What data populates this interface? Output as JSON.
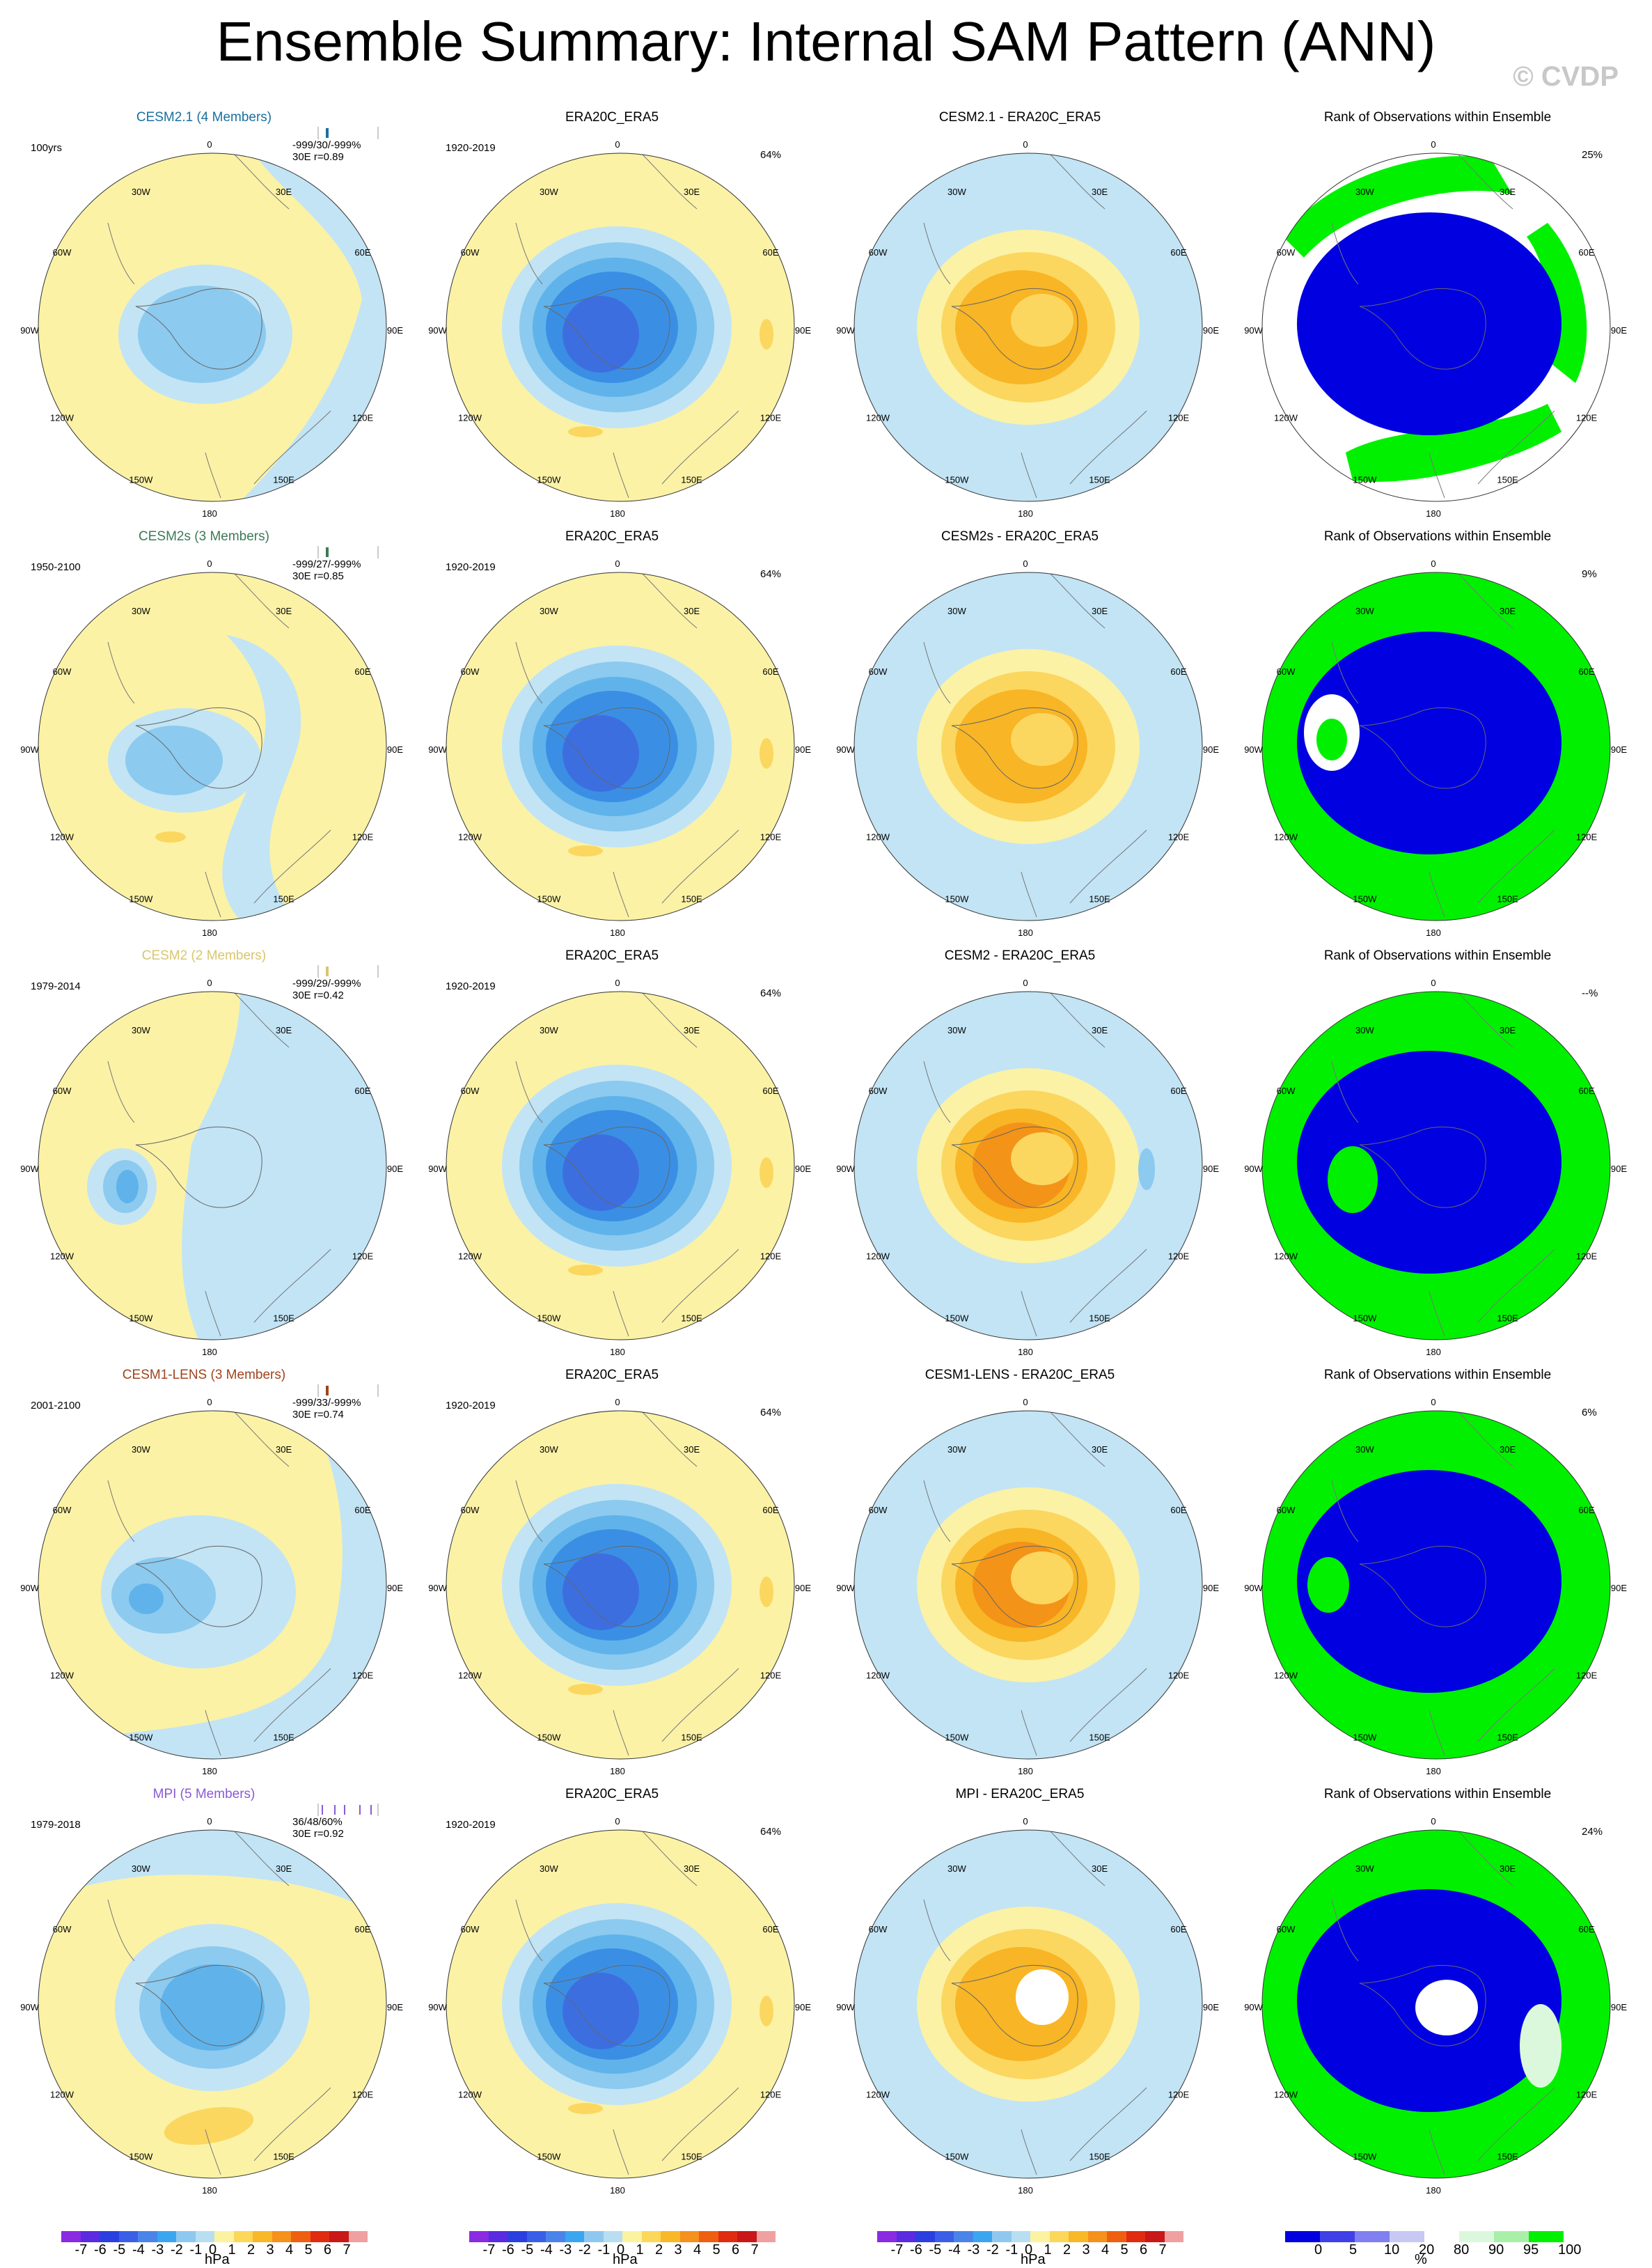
{
  "figure": {
    "title": "Ensemble Summary: Internal SAM Pattern (ANN)",
    "credit": "© CVDP"
  },
  "map_labels": {
    "top": "0",
    "bottom": "180",
    "ring": [
      "30W",
      "30E",
      "60W",
      "60E",
      "90W",
      "90E",
      "120W",
      "120E",
      "150W",
      "150E"
    ]
  },
  "rows": [
    {
      "model": {
        "title": "CESM2.1 (4 Members)",
        "title_color": "#1a6fa0",
        "period": "100yrs",
        "stats_line1": "-999/30/-999%",
        "stats_line2": "30E r=0.89",
        "glyph_color": "#1a6fa0"
      },
      "obs": {
        "title": "ERA20C_ERA5",
        "period": "1920-2019",
        "pct": "64%"
      },
      "diff": {
        "title": "CESM2.1 - ERA20C_ERA5"
      },
      "rank": {
        "title": "Rank of Observations within Ensemble",
        "pct": "25%"
      }
    },
    {
      "model": {
        "title": "CESM2s (3 Members)",
        "title_color": "#3c7a55",
        "period": "1950-2100",
        "stats_line1": "-999/27/-999%",
        "stats_line2": "30E r=0.85",
        "glyph_color": "#3c7a55"
      },
      "obs": {
        "title": "ERA20C_ERA5",
        "period": "1920-2019",
        "pct": "64%"
      },
      "diff": {
        "title": "CESM2s - ERA20C_ERA5"
      },
      "rank": {
        "title": "Rank of Observations within Ensemble",
        "pct": "9%"
      }
    },
    {
      "model": {
        "title": "CESM2 (2 Members)",
        "title_color": "#d8c66e",
        "period": "1979-2014",
        "stats_line1": "-999/29/-999%",
        "stats_line2": "30E r=0.42",
        "glyph_color": "#d8c66e"
      },
      "obs": {
        "title": "ERA20C_ERA5",
        "period": "1920-2019",
        "pct": "64%"
      },
      "diff": {
        "title": "CESM2 - ERA20C_ERA5"
      },
      "rank": {
        "title": "Rank of Observations within Ensemble",
        "pct": "--%"
      }
    },
    {
      "model": {
        "title": "CESM1-LENS (3 Members)",
        "title_color": "#a0441c",
        "period": "2001-2100",
        "stats_line1": "-999/33/-999%",
        "stats_line2": "30E r=0.74",
        "glyph_color": "#a0441c"
      },
      "obs": {
        "title": "ERA20C_ERA5",
        "period": "1920-2019",
        "pct": "64%"
      },
      "diff": {
        "title": "CESM1-LENS - ERA20C_ERA5"
      },
      "rank": {
        "title": "Rank of Observations within Ensemble",
        "pct": "6%"
      }
    },
    {
      "model": {
        "title": "MPI (5 Members)",
        "title_color": "#8a5ad6",
        "period": "1979-2018",
        "stats_line1": "36/48/60%",
        "stats_line2": "30E r=0.92",
        "glyph_color": "#8a5ad6"
      },
      "obs": {
        "title": "ERA20C_ERA5",
        "period": "1920-2019",
        "pct": "64%"
      },
      "diff": {
        "title": "MPI - ERA20C_ERA5"
      },
      "rank": {
        "title": "Rank of Observations within Ensemble",
        "pct": "24%"
      }
    }
  ],
  "colorbars": {
    "hpa": {
      "ticks": [
        "-7",
        "-6",
        "-5",
        "-4",
        "-3",
        "-2",
        "-1",
        "0",
        "1",
        "2",
        "3",
        "4",
        "5",
        "6",
        "7"
      ],
      "unit": "hPa",
      "colors": [
        "#8a2be2",
        "#5a2be0",
        "#2b3fe0",
        "#3a5fe6",
        "#4a84ea",
        "#3aa6f0",
        "#8fc8ee",
        "#b8def2",
        "#fbf3a0",
        "#fbd75a",
        "#f8b828",
        "#f5911c",
        "#ee6010",
        "#e02c10",
        "#c81818",
        "#f0a0a0"
      ]
    },
    "rank": {
      "ticks": [
        "0",
        "5",
        "10",
        "20",
        "80",
        "90",
        "95",
        "100"
      ],
      "unit": "%",
      "colors": [
        "#0000e0",
        "#4040e8",
        "#8080f0",
        "#c8c8f4",
        "#ffffff",
        "#dcf8dc",
        "#a8f0a8",
        "#00f000"
      ]
    }
  },
  "palette": {
    "neg1": "#c2e4f5",
    "neg2": "#8ccaef",
    "neg3": "#5fb3ea",
    "neg4": "#3a8fe4",
    "neg5": "#3d6ee0",
    "pos1": "#fbf2a6",
    "pos2": "#fbd760",
    "pos3": "#f8b525",
    "pos4": "#f39318",
    "rank_low": "#0000e0",
    "rank_high": "#00f000"
  }
}
